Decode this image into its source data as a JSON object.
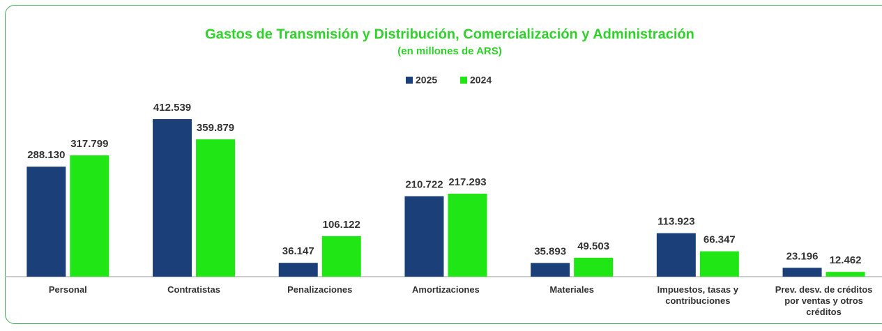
{
  "chart_data": {
    "type": "bar",
    "title": "Gastos de Transmisión y Distribución, Comercialización y Administración",
    "subtitle": "(en millones de ARS)",
    "categories": [
      "Personal",
      "Contratistas",
      "Penalizaciones",
      "Amortizaciones",
      "Materiales",
      "Impuestos, tasas y contribuciones",
      "Prev. desv. de créditos por ventas y otros créditos"
    ],
    "series": [
      {
        "name": "2025",
        "color": "#1b3f78",
        "values": [
          288130,
          412539,
          36147,
          210722,
          35893,
          113923,
          23196
        ],
        "value_labels": [
          "288.130",
          "412.539",
          "36.147",
          "210.722",
          "35.893",
          "113.923",
          "23.196"
        ]
      },
      {
        "name": "2024",
        "color": "#1fe614",
        "values": [
          317799,
          359879,
          106122,
          217293,
          49503,
          66347,
          12462
        ],
        "value_labels": [
          "317.799",
          "359.879",
          "106.122",
          "217.293",
          "49.503",
          "66.347",
          "12.462"
        ]
      }
    ]
  }
}
